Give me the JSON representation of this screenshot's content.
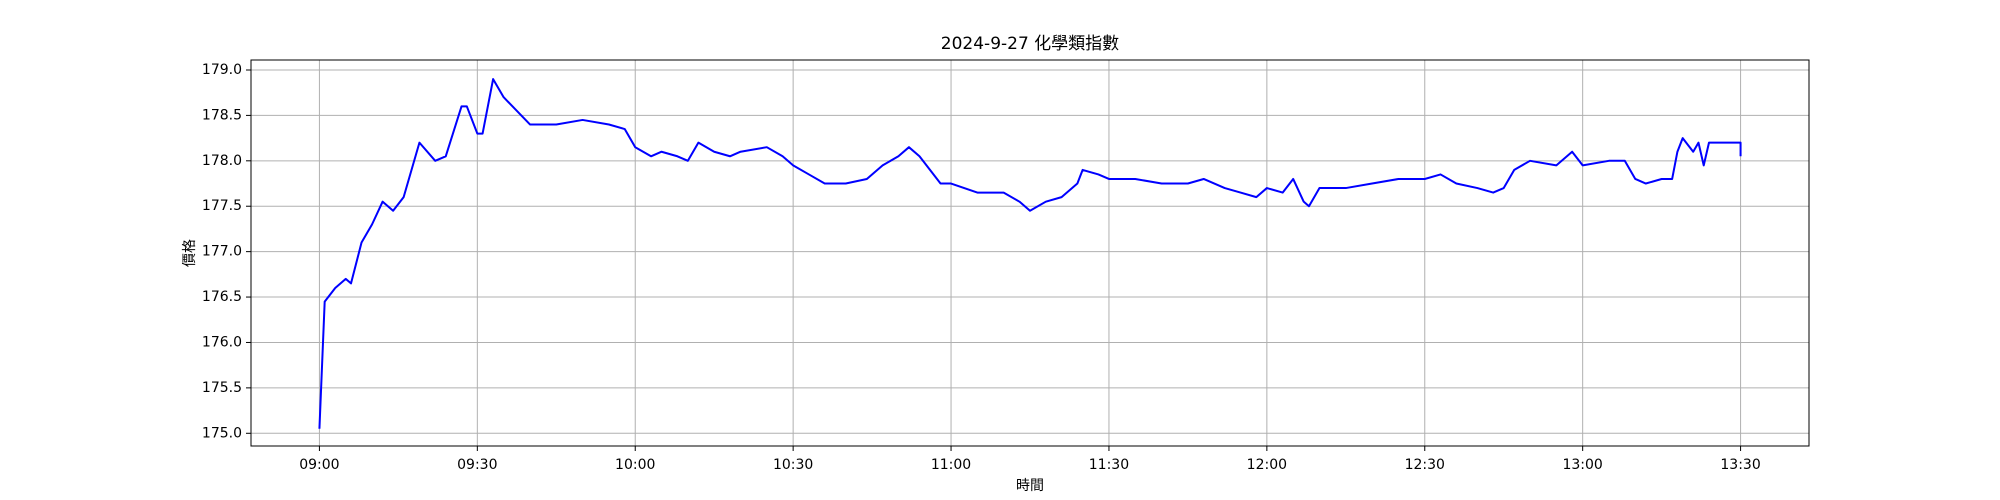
{
  "chart_data": {
    "type": "line",
    "title": "2024-9-27 化學類指數",
    "x_label": "時間",
    "y_label": "價格",
    "color": "#0000ff",
    "grid": true,
    "x": [
      "09:00",
      "09:01",
      "09:03",
      "09:05",
      "09:06",
      "09:08",
      "09:10",
      "09:12",
      "09:14",
      "09:16",
      "09:19",
      "09:22",
      "09:24",
      "09:27",
      "09:28",
      "09:30",
      "09:31",
      "09:33",
      "09:35",
      "09:40",
      "09:45",
      "09:50",
      "09:55",
      "09:58",
      "10:00",
      "10:03",
      "10:05",
      "10:08",
      "10:10",
      "10:12",
      "10:15",
      "10:18",
      "10:20",
      "10:25",
      "10:28",
      "10:30",
      "10:33",
      "10:36",
      "10:40",
      "10:44",
      "10:47",
      "10:50",
      "10:52",
      "10:54",
      "10:56",
      "10:58",
      "11:00",
      "11:05",
      "11:10",
      "11:13",
      "11:15",
      "11:18",
      "11:21",
      "11:24",
      "11:25",
      "11:28",
      "11:30",
      "11:35",
      "11:40",
      "11:45",
      "11:48",
      "11:52",
      "11:55",
      "11:58",
      "12:00",
      "12:03",
      "12:05",
      "12:07",
      "12:08",
      "12:10",
      "12:15",
      "12:20",
      "12:25",
      "12:30",
      "12:33",
      "12:36",
      "12:40",
      "12:43",
      "12:45",
      "12:47",
      "12:50",
      "12:55",
      "12:58",
      "13:00",
      "13:05",
      "13:08",
      "13:10",
      "13:12",
      "13:15",
      "13:17",
      "13:18",
      "13:19",
      "13:21",
      "13:22",
      "13:23",
      "13:24",
      "13:30",
      "13:30"
    ],
    "values": [
      175.05,
      176.45,
      176.6,
      176.7,
      176.65,
      177.1,
      177.3,
      177.55,
      177.45,
      177.6,
      178.2,
      178.0,
      178.05,
      178.6,
      178.6,
      178.3,
      178.3,
      178.9,
      178.7,
      178.4,
      178.4,
      178.45,
      178.4,
      178.35,
      178.15,
      178.05,
      178.1,
      178.05,
      178.0,
      178.2,
      178.1,
      178.05,
      178.1,
      178.15,
      178.05,
      177.95,
      177.85,
      177.75,
      177.75,
      177.8,
      177.95,
      178.05,
      178.15,
      178.05,
      177.9,
      177.75,
      177.75,
      177.65,
      177.65,
      177.55,
      177.45,
      177.55,
      177.6,
      177.75,
      177.9,
      177.85,
      177.8,
      177.8,
      177.75,
      177.75,
      177.8,
      177.7,
      177.65,
      177.6,
      177.7,
      177.65,
      177.8,
      177.55,
      177.5,
      177.7,
      177.7,
      177.75,
      177.8,
      177.8,
      177.85,
      177.75,
      177.7,
      177.65,
      177.7,
      177.9,
      178.0,
      177.95,
      178.1,
      177.95,
      178.0,
      178.0,
      177.8,
      177.75,
      177.8,
      177.8,
      178.1,
      178.25,
      178.1,
      178.2,
      177.95,
      178.2,
      178.2,
      178.05
    ],
    "xlim": [
      "08:47",
      "13:43"
    ],
    "xticks": [
      "09:00",
      "09:30",
      "10:00",
      "10:30",
      "11:00",
      "11:30",
      "12:00",
      "12:30",
      "13:00",
      "13:30"
    ],
    "ylim": [
      174.86,
      179.11
    ],
    "yticks": [
      {
        "value": 175,
        "label": "175.0"
      },
      {
        "value": 175.5,
        "label": "175.5"
      },
      {
        "value": 176,
        "label": "176.0"
      },
      {
        "value": 176.5,
        "label": "176.5"
      },
      {
        "value": 177,
        "label": "177.0"
      },
      {
        "value": 177.5,
        "label": "177.5"
      },
      {
        "value": 178,
        "label": "178.0"
      },
      {
        "value": 178.5,
        "label": "178.5"
      },
      {
        "value": 179,
        "label": "179.0"
      }
    ]
  }
}
